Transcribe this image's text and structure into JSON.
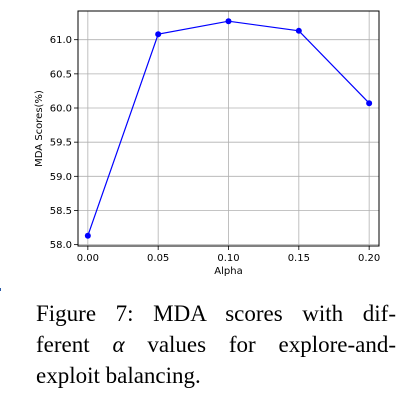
{
  "chart_data": {
    "type": "line",
    "x": [
      0.0,
      0.05,
      0.1,
      0.15,
      0.2
    ],
    "xticks": [
      "0.00",
      "0.05",
      "0.10",
      "0.15",
      "0.20"
    ],
    "xlim": [
      -0.007,
      0.207
    ],
    "series": [
      {
        "values": [
          58.13,
          61.08,
          61.27,
          61.13,
          60.07
        ],
        "color": "#0000ff"
      }
    ],
    "yticks": [
      "58.0",
      "58.5",
      "59.0",
      "59.5",
      "60.0",
      "60.5",
      "61.0"
    ],
    "ylim": [
      57.98,
      61.42
    ],
    "xlabel": "Alpha",
    "ylabel": "MDA Scores(%)",
    "grid": true
  },
  "caption": {
    "line1": "Figure 7: MDA scores with dif-",
    "line2_pre": "ferent ",
    "line2_symbol": "α",
    "line2_post": " values for explore-and-",
    "line3": "exploit balancing."
  }
}
